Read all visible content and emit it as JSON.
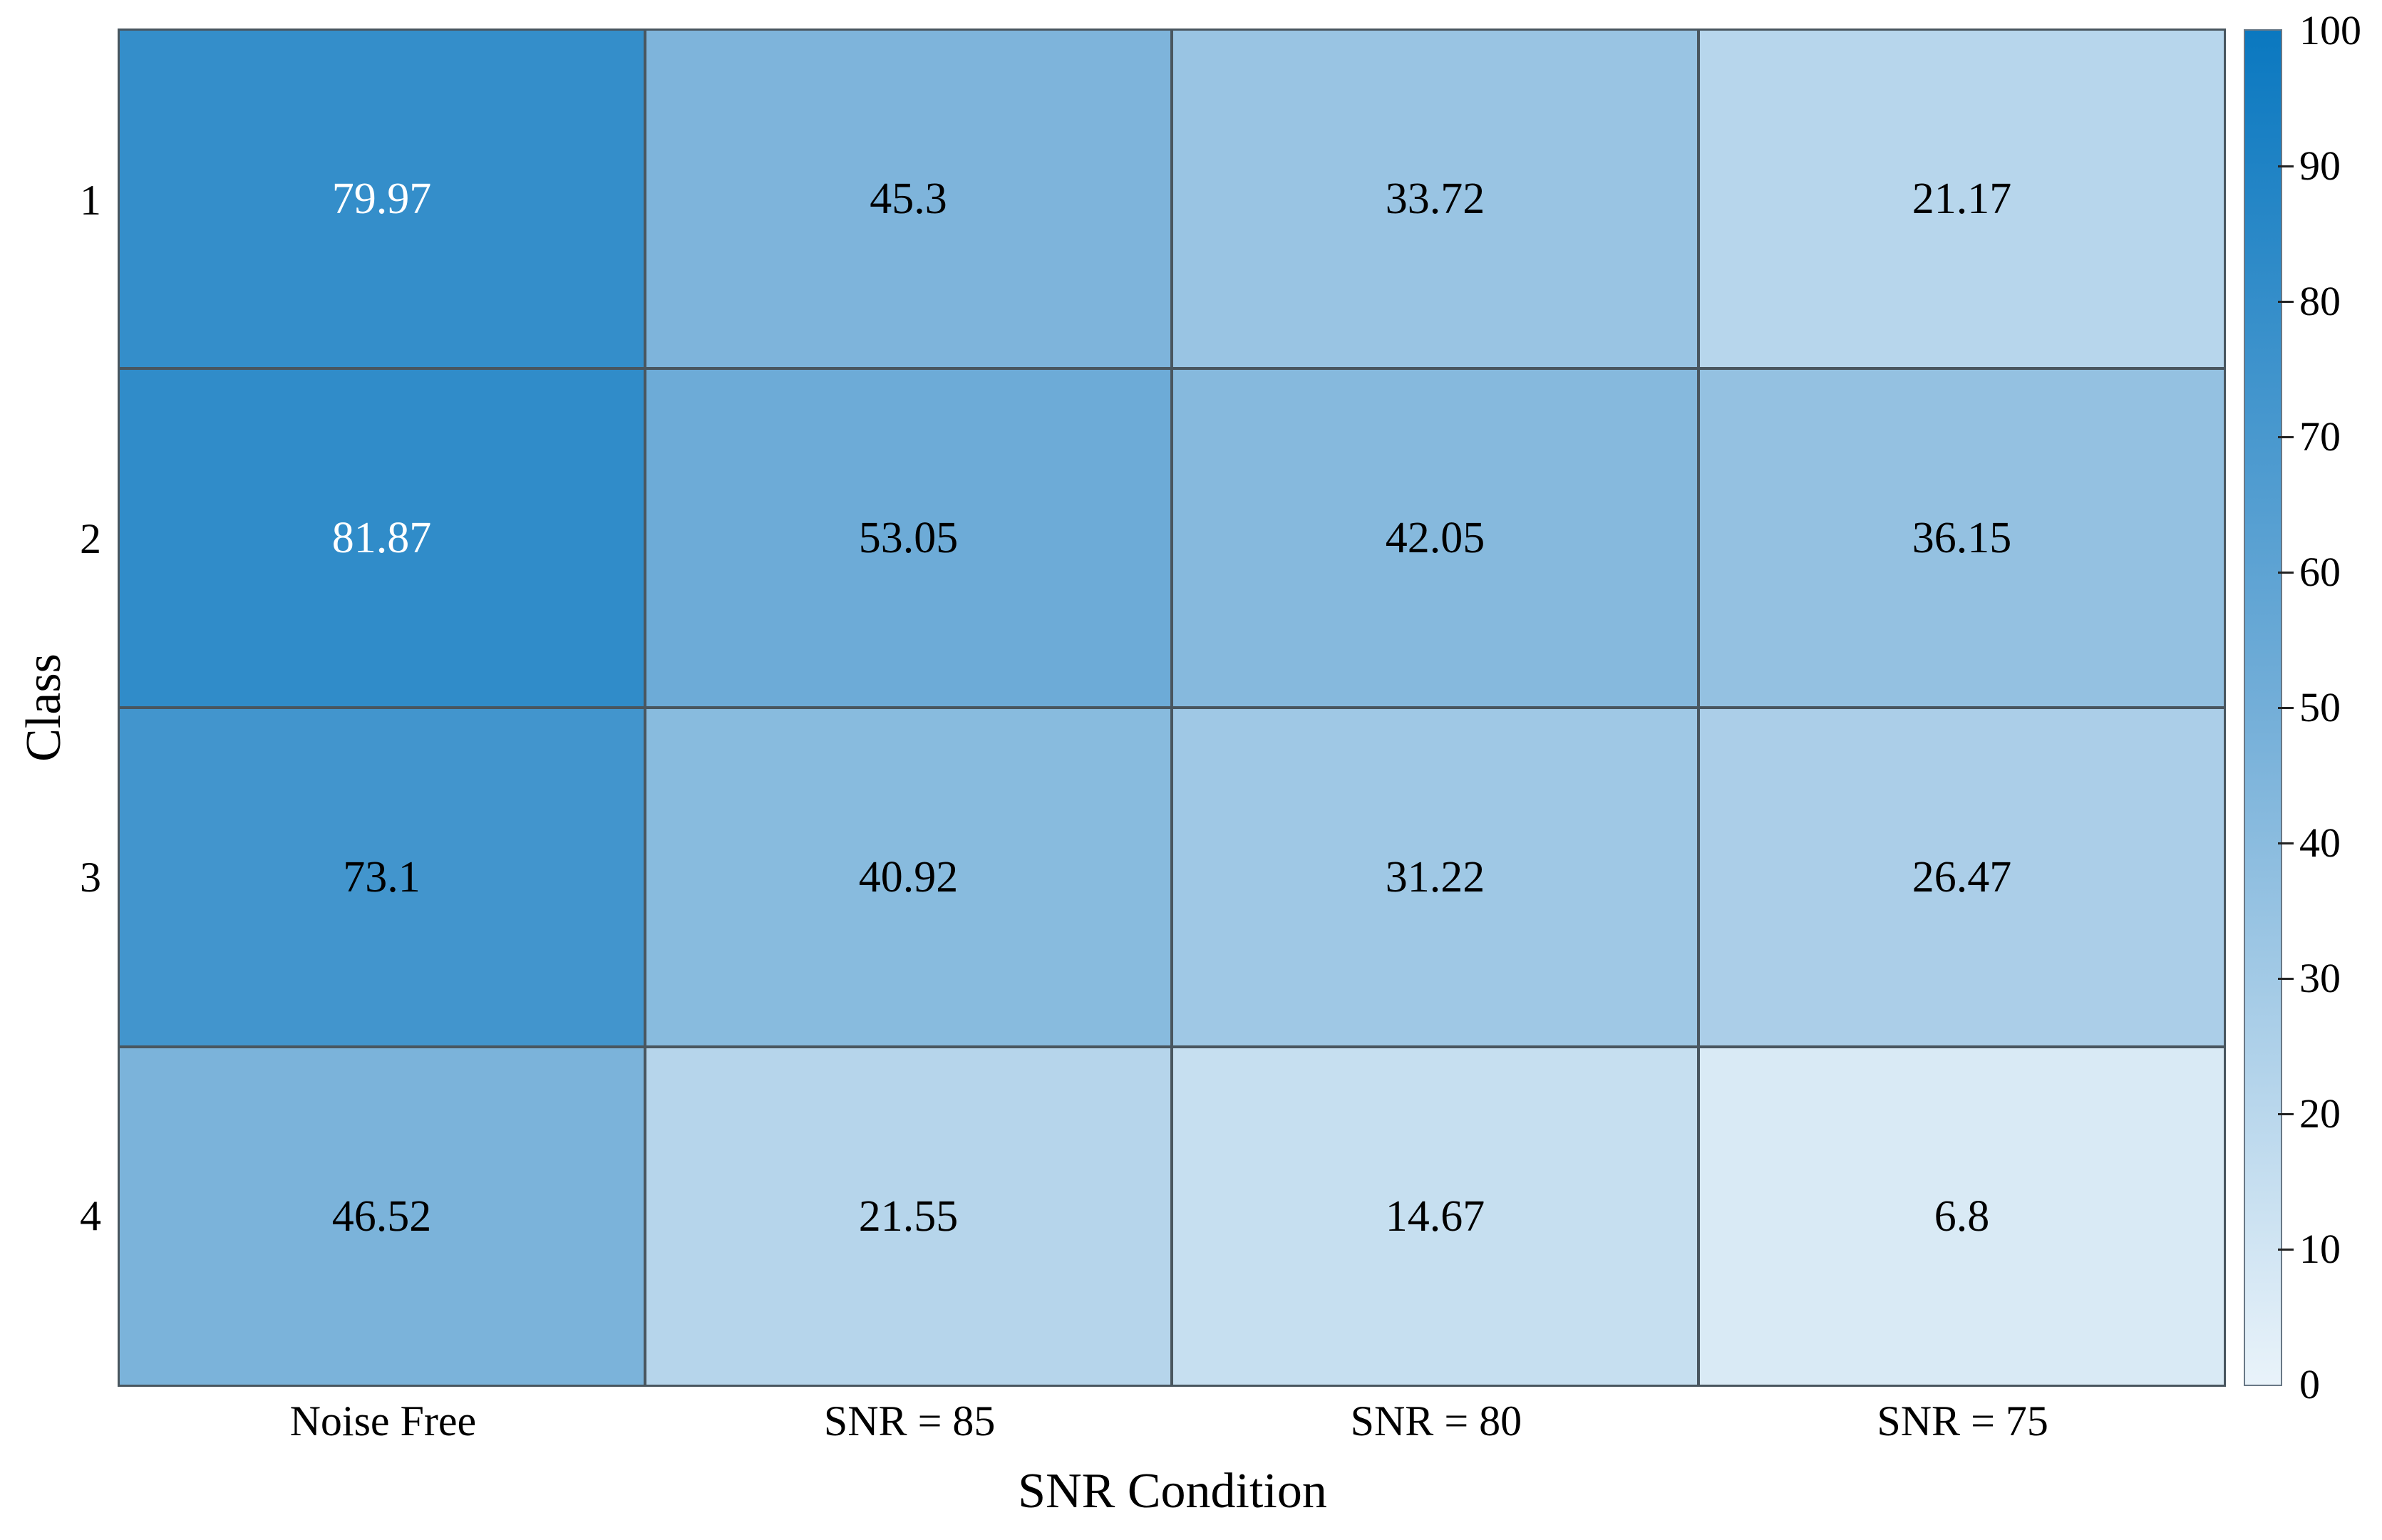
{
  "chart_data": {
    "type": "heatmap",
    "title": "",
    "xlabel": "SNR Condition",
    "ylabel": "Class",
    "x_categories": [
      "Noise Free",
      "SNR = 85",
      "SNR = 80",
      "SNR = 75"
    ],
    "y_categories": [
      "1",
      "2",
      "3",
      "4"
    ],
    "values": [
      [
        79.97,
        45.3,
        33.72,
        21.17
      ],
      [
        81.87,
        53.05,
        42.05,
        36.15
      ],
      [
        73.1,
        40.92,
        31.22,
        26.47
      ],
      [
        46.52,
        21.55,
        14.67,
        6.8
      ]
    ],
    "colorbar": {
      "min": 0,
      "max": 100,
      "ticks": [
        0,
        10,
        20,
        30,
        40,
        50,
        60,
        70,
        80,
        90,
        100
      ],
      "position": "right"
    },
    "colormap_stops": [
      {
        "value": 0,
        "color": "#e9f3fa"
      },
      {
        "value": 50,
        "color": "#73aed8"
      },
      {
        "value": 100,
        "color": "#0a78c0"
      }
    ],
    "grid_on": true,
    "styles": {
      "background": "#ffffff",
      "grid_line_color": "#49565f",
      "axis_text_color": "#000000",
      "cell_text_dark": "#000000",
      "cell_text_light": "#ffffff",
      "light_text_min_value": 76,
      "colorbar_border_color": "#697886",
      "colorbar_tick_color": "#222222"
    }
  }
}
